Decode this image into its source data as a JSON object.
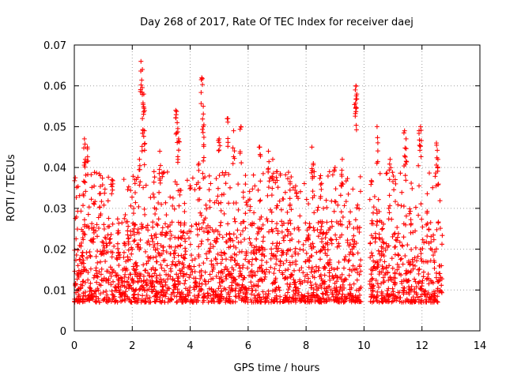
{
  "chart_data": {
    "type": "scatter",
    "title": "Day 268 of 2017, Rate Of TEC Index for receiver daej",
    "xlabel": "GPS time / hours",
    "ylabel": "ROTI / TECUs",
    "xlim": [
      0,
      14
    ],
    "ylim": [
      0,
      0.07
    ],
    "x_ticks": [
      "0",
      "2",
      "4",
      "6",
      "8",
      "10",
      "12",
      "14"
    ],
    "y_ticks": [
      "0",
      "0.01",
      "0.02",
      "0.03",
      "0.04",
      "0.05",
      "0.06",
      "0.07"
    ],
    "grid": true,
    "marker": "+",
    "series": [
      {
        "color": "#ff0000",
        "x_range": [
          0.0,
          12.7
        ],
        "gap": [
          9.9,
          10.2
        ],
        "typical_range": [
          0.007,
          0.027
        ],
        "spikes": [
          [
            0.35,
            0.047
          ],
          [
            0.38,
            0.042
          ],
          [
            0.45,
            0.045
          ],
          [
            0.9,
            0.038
          ],
          [
            1.3,
            0.037
          ],
          [
            2.05,
            0.03
          ],
          [
            2.25,
            0.042
          ],
          [
            2.3,
            0.066
          ],
          [
            2.35,
            0.064
          ],
          [
            2.35,
            0.052
          ],
          [
            2.4,
            0.058
          ],
          [
            2.42,
            0.049
          ],
          [
            2.75,
            0.039
          ],
          [
            2.95,
            0.044
          ],
          [
            3.5,
            0.054
          ],
          [
            3.55,
            0.051
          ],
          [
            3.6,
            0.047
          ],
          [
            4.3,
            0.041
          ],
          [
            4.4,
            0.062
          ],
          [
            4.45,
            0.055
          ],
          [
            4.45,
            0.05
          ],
          [
            5.0,
            0.047
          ],
          [
            5.3,
            0.052
          ],
          [
            5.5,
            0.049
          ],
          [
            5.75,
            0.05
          ],
          [
            6.4,
            0.045
          ],
          [
            6.7,
            0.044
          ],
          [
            6.85,
            0.042
          ],
          [
            7.0,
            0.039
          ],
          [
            7.45,
            0.036
          ],
          [
            8.2,
            0.045
          ],
          [
            8.25,
            0.041
          ],
          [
            8.5,
            0.038
          ],
          [
            9.0,
            0.04
          ],
          [
            9.25,
            0.042
          ],
          [
            9.7,
            0.059
          ],
          [
            9.72,
            0.06
          ],
          [
            9.75,
            0.058
          ],
          [
            10.45,
            0.05
          ],
          [
            10.9,
            0.042
          ],
          [
            11.4,
            0.049
          ],
          [
            11.45,
            0.047
          ],
          [
            11.9,
            0.049
          ],
          [
            11.95,
            0.05
          ],
          [
            12.5,
            0.046
          ],
          [
            12.55,
            0.042
          ]
        ]
      }
    ]
  }
}
